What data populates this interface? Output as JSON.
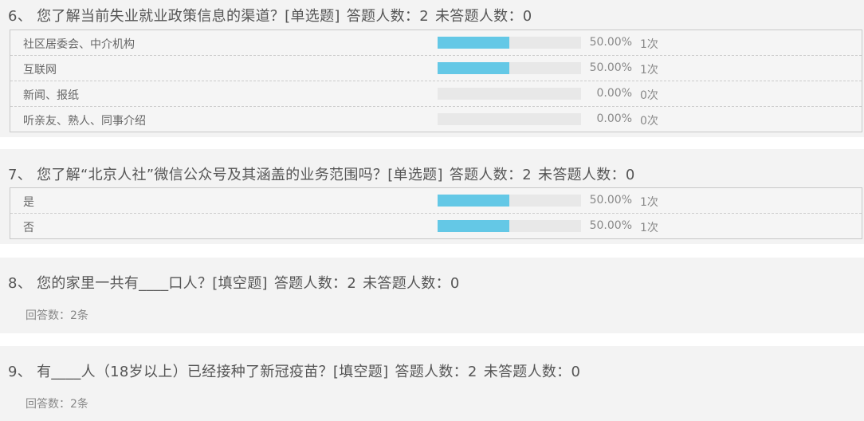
{
  "accent_color": "#64c8e6",
  "questions": [
    {
      "title": "6、 您了解当前失业就业政策信息的渠道？[单选题]",
      "answered": "答题人数：2",
      "unanswered": "未答题人数：0",
      "options": [
        {
          "label": "社区居委会、中介机构",
          "percent": "50.00%",
          "count": "1次",
          "fill": 50
        },
        {
          "label": "互联网",
          "percent": "50.00%",
          "count": "1次",
          "fill": 50
        },
        {
          "label": "新闻、报纸",
          "percent": "0.00%",
          "count": "0次",
          "fill": 0
        },
        {
          "label": "听亲友、熟人、同事介绍",
          "percent": "0.00%",
          "count": "0次",
          "fill": 0
        }
      ]
    },
    {
      "title": "7、 您了解“北京人社”微信公众号及其涵盖的业务范围吗？[单选题]",
      "answered": "答题人数：2",
      "unanswered": "未答题人数：0",
      "options": [
        {
          "label": "是",
          "percent": "50.00%",
          "count": "1次",
          "fill": 50
        },
        {
          "label": "否",
          "percent": "50.00%",
          "count": "1次",
          "fill": 50
        }
      ]
    },
    {
      "title": "8、 您的家里一共有____口人？[填空题]",
      "answered": "答题人数：2",
      "unanswered": "未答题人数：0",
      "answers": "回答数：2条"
    },
    {
      "title": "9、 有____人（18岁以上）已经接种了新冠疫苗？[填空题]",
      "answered": "答题人数：2",
      "unanswered": "未答题人数：0",
      "answers": "回答数：2条"
    }
  ]
}
